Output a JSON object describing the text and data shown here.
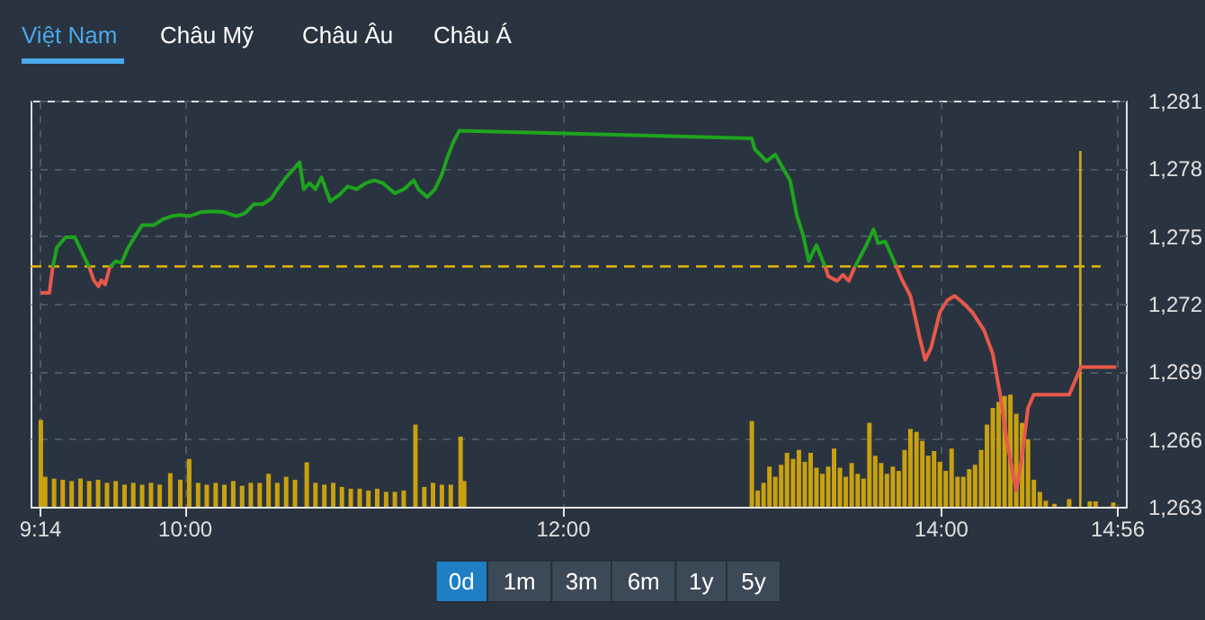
{
  "chart_data": {
    "type": "line",
    "annotations": [
      "Việt Nam",
      "Châu Mỹ",
      "Châu Âu",
      "Châu Á",
      "0d",
      "1m",
      "3m",
      "6m",
      "1y",
      "5y"
    ],
    "xlim": [
      9.2333,
      14.9333
    ],
    "xticks": [
      {
        "value": 9.2333,
        "label": "9:14"
      },
      {
        "value": 10,
        "label": "10:00"
      },
      {
        "value": 12,
        "label": "12:00"
      },
      {
        "value": 14,
        "label": "14:00"
      },
      {
        "value": 14.9333,
        "label": "14:56"
      }
    ],
    "ylim": [
      1263,
      1281
    ],
    "yticks": [
      {
        "value": 1263,
        "label": "1,263"
      },
      {
        "value": 1266,
        "label": "1,266"
      },
      {
        "value": 1269,
        "label": "1,269"
      },
      {
        "value": 1272,
        "label": "1,272"
      },
      {
        "value": 1275,
        "label": "1,275"
      },
      {
        "value": 1278,
        "label": "1,278"
      },
      {
        "value": 1281,
        "label": "1,281"
      }
    ],
    "grid": true,
    "series": [
      {
        "type": "bar",
        "color": "#c9a10f",
        "x": [
          9.24,
          9.263,
          9.31,
          9.356,
          9.403,
          9.45,
          9.496,
          9.543,
          9.59,
          9.636,
          9.683,
          9.729,
          9.776,
          9.823,
          9.869,
          9.925,
          9.978,
          10.025,
          10.072,
          10.118,
          10.165,
          10.211,
          10.258,
          10.305,
          10.351,
          10.398,
          10.445,
          10.491,
          10.538,
          10.585,
          10.647,
          10.693,
          10.74,
          10.787,
          10.833,
          10.88,
          10.927,
          10.973,
          11.02,
          11.067,
          11.113,
          11.16,
          11.222,
          11.269,
          11.315,
          11.362,
          11.409,
          11.461,
          11.48,
          13.002,
          13.033,
          13.064,
          13.095,
          13.126,
          13.157,
          13.188,
          13.22,
          13.251,
          13.282,
          13.313,
          13.344,
          13.375,
          13.406,
          13.437,
          13.468,
          13.499,
          13.53,
          13.562,
          13.593,
          13.624,
          13.655,
          13.686,
          13.717,
          13.748,
          13.779,
          13.81,
          13.841,
          13.873,
          13.904,
          13.935,
          13.966,
          13.997,
          14.028,
          14.059,
          14.09,
          14.121,
          14.152,
          14.183,
          14.215,
          14.246,
          14.277,
          14.308,
          14.339,
          14.37,
          14.401,
          14.432,
          14.463,
          14.494,
          14.526,
          14.557,
          14.603,
          14.681,
          14.79,
          14.821,
          14.914
        ],
        "values": [
          1266.85,
          1264.33,
          1264.25,
          1264.2,
          1264.14,
          1264.25,
          1264.14,
          1264.2,
          1264.06,
          1264.14,
          1263.98,
          1264.06,
          1263.98,
          1264.06,
          1263.98,
          1264.49,
          1264.2,
          1265.12,
          1264.06,
          1263.98,
          1264.06,
          1263.98,
          1264.14,
          1263.93,
          1264.06,
          1264.06,
          1264.46,
          1264.06,
          1264.33,
          1264.2,
          1264.97,
          1264.06,
          1263.98,
          1264.06,
          1263.88,
          1263.8,
          1263.8,
          1263.72,
          1263.8,
          1263.66,
          1263.66,
          1263.72,
          1266.64,
          1263.88,
          1264.06,
          1263.98,
          1263.98,
          1266.11,
          1264.14,
          1266.8,
          1263.72,
          1264.06,
          1264.78,
          1264.33,
          1264.86,
          1265.39,
          1265.12,
          1265.52,
          1264.99,
          1265.39,
          1264.73,
          1264.46,
          1264.78,
          1265.58,
          1264.73,
          1264.33,
          1264.94,
          1264.46,
          1264.25,
          1266.72,
          1265.26,
          1264.94,
          1264.46,
          1264.78,
          1264.59,
          1265.52,
          1266.45,
          1266.32,
          1265.92,
          1265.26,
          1265.47,
          1264.99,
          1264.59,
          1265.58,
          1264.33,
          1264.33,
          1264.67,
          1264.86,
          1265.52,
          1266.64,
          1267.38,
          1267.65,
          1267.91,
          1267.97,
          1267.12,
          1266.72,
          1266.0,
          1264.2,
          1263.66,
          1263.27,
          1263.13,
          1263.34,
          1263.24,
          1263.24,
          1263.19
        ]
      },
      {
        "type": "line",
        "color": "#1ea51e",
        "x": [
          9.303,
          9.325,
          9.372,
          9.419,
          9.45,
          9.496,
          9.55,
          9.605,
          9.636,
          9.667,
          9.698,
          9.745,
          9.776,
          9.838,
          9.885,
          9.932,
          9.978,
          10.025,
          10.087,
          10.149,
          10.211,
          10.274,
          10.32,
          10.367,
          10.414,
          10.46,
          10.491,
          10.538,
          10.609,
          10.631,
          10.662,
          10.693,
          10.725,
          10.771,
          10.818,
          10.864,
          10.911,
          10.958,
          11.004,
          11.051,
          11.113,
          11.16,
          11.213,
          11.238,
          11.284,
          11.325,
          11.362,
          11.393,
          11.424,
          11.455,
          13.002,
          13.017,
          13.08,
          13.126,
          13.167,
          13.204,
          13.241,
          13.272,
          13.303,
          13.344,
          13.375,
          13.39,
          13.47,
          13.546,
          13.608,
          13.646,
          13.67,
          13.708,
          13.764
        ],
        "values": [
          1273.62,
          1274.5,
          1274.95,
          1274.95,
          1274.42,
          1273.62,
          null,
          1273.62,
          1273.89,
          1273.81,
          1274.42,
          1275.08,
          1275.48,
          1275.48,
          1275.74,
          1275.88,
          1275.93,
          1275.88,
          1276.06,
          1276.09,
          1276.06,
          1275.88,
          1276.01,
          1276.41,
          1276.41,
          1276.67,
          1277.07,
          1277.6,
          1278.27,
          1277.07,
          1277.34,
          1277.07,
          1277.6,
          1276.54,
          1276.81,
          1277.2,
          1277.07,
          1277.34,
          1277.47,
          1277.34,
          1276.89,
          1277.07,
          1277.47,
          1277.07,
          1276.73,
          1277.07,
          1277.73,
          1278.53,
          1279.19,
          1279.67,
          1279.33,
          1278.85,
          1278.32,
          1278.61,
          1278.0,
          1277.47,
          1275.88,
          1275.08,
          1273.89,
          1274.6,
          1273.94,
          1273.65,
          null,
          1273.62,
          1274.6,
          1275.29,
          1274.68,
          1274.76,
          1273.7
        ]
      },
      {
        "type": "line",
        "color": "#e8584a",
        "x": [
          9.24,
          9.285,
          9.303,
          9.4,
          9.496,
          9.52,
          9.545,
          9.56,
          9.58,
          9.605,
          9.7,
          13.39,
          13.406,
          13.453,
          13.484,
          13.515,
          13.546,
          13.65,
          13.764,
          13.795,
          13.841,
          13.888,
          13.919,
          13.95,
          13.997,
          14.037,
          14.075,
          14.121,
          14.168,
          14.23,
          14.277,
          14.317,
          14.354,
          14.401,
          14.432,
          14.463,
          14.494,
          14.681,
          14.743,
          14.93
        ],
        "values": [
          1272.48,
          1272.48,
          1273.62,
          null,
          1273.62,
          1273.04,
          1272.77,
          1273.04,
          1272.85,
          1273.62,
          null,
          1273.65,
          1273.22,
          1273.01,
          1273.28,
          1273.01,
          1273.62,
          null,
          1273.7,
          1273.09,
          1272.35,
          1270.57,
          1269.51,
          1270.04,
          1271.63,
          1272.16,
          1272.35,
          1272.03,
          1271.63,
          1270.83,
          1269.77,
          1267.91,
          1265.79,
          1263.72,
          1265.26,
          1267.38,
          1267.97,
          1267.97,
          1269.19,
          1269.19
        ]
      }
    ],
    "ref_lines": [
      {
        "axis": "y",
        "value": 1273.65,
        "color": "#e6b800",
        "line_style": "dashed"
      },
      {
        "axis": "x",
        "value": 14.74,
        "color": "#d4aa1a",
        "line_style": "solid"
      }
    ]
  }
}
